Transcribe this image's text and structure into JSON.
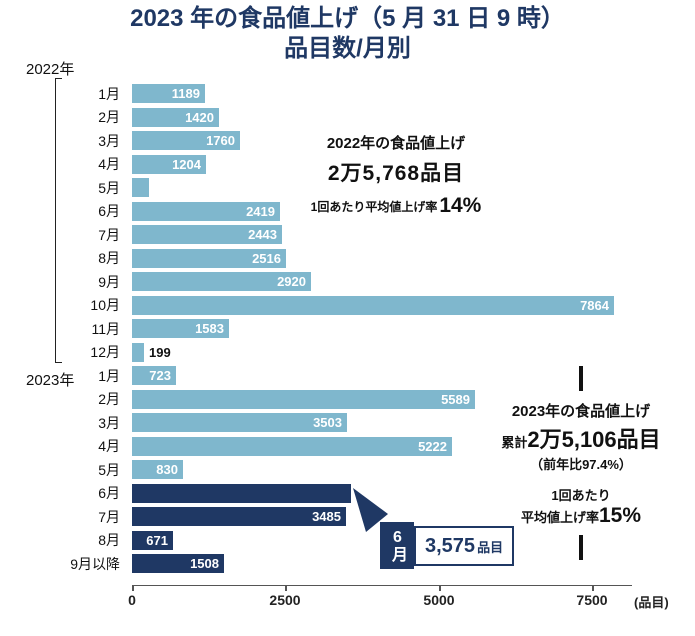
{
  "title": {
    "line1": "2023 年の食品値上げ（5 月 31 日 9 時）",
    "line2": "品目数/月別"
  },
  "chart_data": {
    "type": "bar",
    "orientation": "horizontal",
    "title": "2023年の食品値上げ（5月31日9時） 品目数/月別",
    "xlabel": "(品目)",
    "xticks": [
      0,
      2500,
      5000,
      7500
    ],
    "xlim": [
      0,
      8000
    ],
    "grid": false,
    "legend": false,
    "colors": {
      "light": "#7fb7cd",
      "dark": "#1f3864"
    },
    "groups": [
      {
        "year": "2022年",
        "points": [
          {
            "month": "1月",
            "value": 1189,
            "label": "1189",
            "label_pos": "in",
            "tone": "light"
          },
          {
            "month": "2月",
            "value": 1420,
            "label": "1420",
            "label_pos": "in",
            "tone": "light"
          },
          {
            "month": "3月",
            "value": 1760,
            "label": "1760",
            "label_pos": "in",
            "tone": "light"
          },
          {
            "month": "4月",
            "value": 1204,
            "label": "1204",
            "label_pos": "in",
            "tone": "light"
          },
          {
            "month": "5月",
            "value": 280,
            "label": "",
            "label_pos": "none",
            "tone": "light",
            "estimated": true
          },
          {
            "month": "6月",
            "value": 2419,
            "label": "2419",
            "label_pos": "in",
            "tone": "light"
          },
          {
            "month": "7月",
            "value": 2443,
            "label": "2443",
            "label_pos": "in",
            "tone": "light"
          },
          {
            "month": "8月",
            "value": 2516,
            "label": "2516",
            "label_pos": "in",
            "tone": "light"
          },
          {
            "month": "9月",
            "value": 2920,
            "label": "2920",
            "label_pos": "in",
            "tone": "light"
          },
          {
            "month": "10月",
            "value": 7864,
            "label": "7864",
            "label_pos": "in",
            "tone": "light"
          },
          {
            "month": "11月",
            "value": 1583,
            "label": "1583",
            "label_pos": "in",
            "tone": "light"
          },
          {
            "month": "12月",
            "value": 199,
            "label": "199",
            "label_pos": "out",
            "tone": "light"
          }
        ]
      },
      {
        "year": "2023年",
        "points": [
          {
            "month": "1月",
            "value": 723,
            "label": "723",
            "label_pos": "in",
            "tone": "light"
          },
          {
            "month": "2月",
            "value": 5589,
            "label": "5589",
            "label_pos": "in",
            "tone": "light"
          },
          {
            "month": "3月",
            "value": 3503,
            "label": "3503",
            "label_pos": "in",
            "tone": "light"
          },
          {
            "month": "4月",
            "value": 5222,
            "label": "5222",
            "label_pos": "in",
            "tone": "light"
          },
          {
            "month": "5月",
            "value": 830,
            "label": "830",
            "label_pos": "in",
            "tone": "light"
          },
          {
            "month": "6月",
            "value": 3575,
            "label": "",
            "label_pos": "none",
            "tone": "dark"
          },
          {
            "month": "7月",
            "value": 3485,
            "label": "3485",
            "label_pos": "in",
            "tone": "dark"
          },
          {
            "month": "8月",
            "value": 671,
            "label": "671",
            "label_pos": "in",
            "tone": "dark"
          },
          {
            "month": "9月以降",
            "value": 1508,
            "label": "1508",
            "label_pos": "in",
            "tone": "dark"
          }
        ]
      }
    ]
  },
  "annotations": {
    "y2022": {
      "title": "2022年の食品値上げ",
      "total": "2万5,768品目",
      "rate_label": "1回あたり平均値上げ率",
      "rate_value": "14%"
    },
    "y2023": {
      "title": "2023年の食品値上げ",
      "total_prefix": "累計",
      "total": "2万5,106品目",
      "yoy": "（前年比97.4%）",
      "rate_label_line1": "1回あたり",
      "rate_label_line2": "平均値上げ率",
      "rate_value": "15%"
    }
  },
  "callout": {
    "month": "6月",
    "value": "3,575",
    "unit": "品目"
  },
  "axis": {
    "unit_label": "(品目)"
  }
}
